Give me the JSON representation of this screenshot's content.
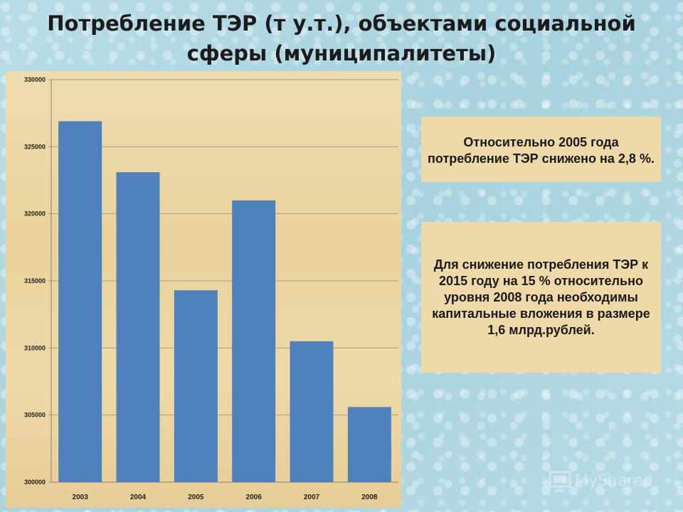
{
  "title": "Потребление ТЭР (т у.т.), объектами социальной сферы (муниципалитеты)",
  "chart_data": {
    "type": "bar",
    "title": "",
    "xlabel": "",
    "ylabel": "",
    "categories": [
      "2003",
      "2004",
      "2005",
      "2006",
      "2007",
      "2008"
    ],
    "values": [
      326900,
      323100,
      314300,
      321000,
      310500,
      305600
    ],
    "ylim": [
      300000,
      330000
    ],
    "yticks": [
      "300000",
      "305000",
      "310000",
      "315000",
      "320000",
      "325000",
      "330000"
    ],
    "ytick_values": [
      300000,
      305000,
      310000,
      315000,
      320000,
      325000,
      330000
    ],
    "grid": true,
    "bar_color": "#4f81bd"
  },
  "notes": {
    "note1": "Относительно 2005 года потребление ТЭР снижено на 2,8 %.",
    "note2": "Для снижение потребления ТЭР к 2015 году на 15 % относительно уровня 2008 года необходимы капитальные вложения в размере 1,6 млрд.рублей."
  },
  "logo": {
    "text": "MyShared",
    "icon": "presentation-icon"
  }
}
